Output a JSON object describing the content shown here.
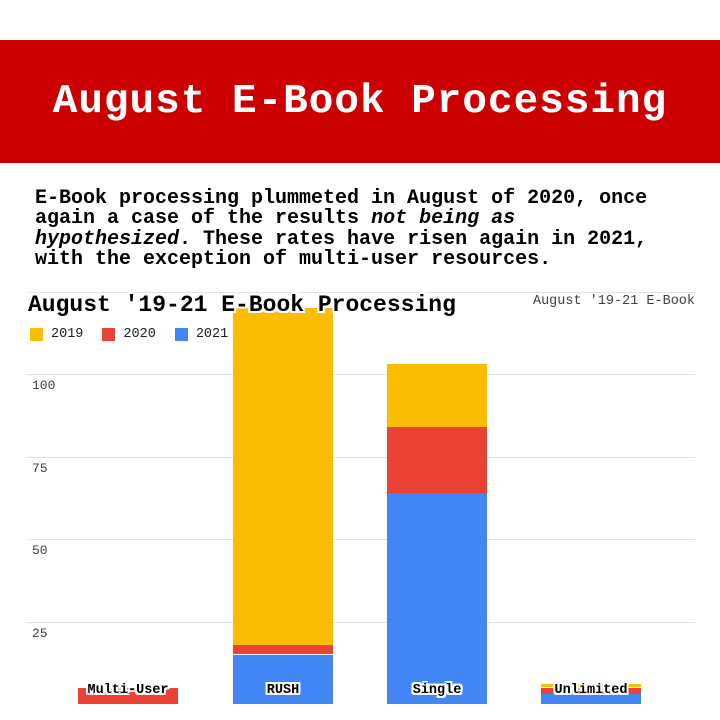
{
  "banner": {
    "title": "August E-Book Processing",
    "bg_color": "#CC0000",
    "text_color": "#FFFFFF"
  },
  "intro": {
    "text": "E-Book processing plummeted in August of 2020, once again a case of the results not being as hypothesized. These rates have risen again in 2021, with the exception of multi-user resources.",
    "lines": [
      [
        {
          "t": "E-Book processing plummeted in August of 2020, once",
          "i": false
        }
      ],
      [
        {
          "t": "again a case of the results ",
          "i": false
        },
        {
          "t": "not being as",
          "i": true
        }
      ],
      [
        {
          "t": "hypothesized",
          "i": true
        },
        {
          "t": ". These rates have risen again in 2021,",
          "i": false
        }
      ],
      [
        {
          "t": "with the exception of multi-user resources.",
          "i": false
        }
      ]
    ]
  },
  "chart": {
    "title": "August '19-21 E-Book Processing",
    "corner_label": "August '19-21 E-Book"
  },
  "chart_data": {
    "type": "bar",
    "stacked": true,
    "title": "August '19-21 E-Book Processing",
    "categories": [
      "Multi-User",
      "RUSH",
      "Single",
      "Unlimited"
    ],
    "series": [
      {
        "name": "2019",
        "color": "#FBBC04",
        "values": [
          0,
          102,
          19,
          1
        ]
      },
      {
        "name": "2020",
        "color": "#EA4335",
        "values": [
          5,
          3,
          20,
          2
        ]
      },
      {
        "name": "2021",
        "color": "#4285F4",
        "values": [
          0,
          15,
          64,
          3
        ]
      }
    ],
    "stack_order_bottom_to_top": [
      "2021",
      "2020",
      "2019"
    ],
    "yticks": [
      25,
      50,
      75,
      100
    ],
    "ylim": [
      0,
      125
    ],
    "grid": true,
    "legend_position": "top-left",
    "xlabel": "",
    "ylabel": ""
  }
}
